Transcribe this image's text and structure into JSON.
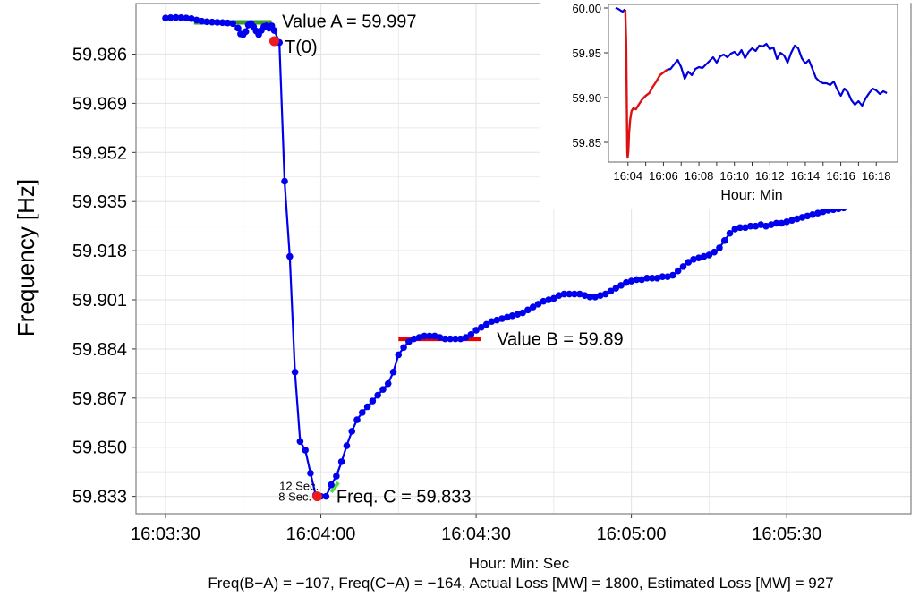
{
  "colors": {
    "series": "#0000ee",
    "value_b_line": "#ee0000",
    "value_a_line": "#3a9a2e",
    "marker": "#ee1c1c",
    "inset_series": "#0000dd",
    "inset_highlight": "#dd1111",
    "grid": "#e6e6e6",
    "panel_border": "#7f7f7f"
  },
  "chart_data": [
    {
      "id": "main",
      "type": "line",
      "ylabel": "Frequency [Hz]",
      "xlabel": "Hour: Min: Sec",
      "caption": "Freq(B−A) = −107, Freq(C−A) = −164, Actual Loss [MW] = 1800, Estimated Loss [MW] = 927",
      "x_unit": "seconds after 16:03:00",
      "xlim": [
        24.3,
        174
      ],
      "ylim": [
        59.827,
        60.0035
      ],
      "x_ticks": [
        30,
        60,
        90,
        120,
        150
      ],
      "x_tick_labels": [
        "16:03:30",
        "16:04:00",
        "16:04:30",
        "16:05:00",
        "16:05:30"
      ],
      "y_ticks": [
        59.833,
        59.85,
        59.867,
        59.884,
        59.901,
        59.918,
        59.935,
        59.952,
        59.969,
        59.986
      ],
      "y_tick_labels": [
        "59.833",
        "59.850",
        "59.867",
        "59.884",
        "59.901",
        "59.918",
        "59.935",
        "59.952",
        "59.969",
        "59.986"
      ],
      "grid": true,
      "series": [
        {
          "markers": true,
          "points": [
            [
              30,
              59.9985
            ],
            [
              31,
              59.9986
            ],
            [
              32,
              59.9987
            ],
            [
              33,
              59.9986
            ],
            [
              34,
              59.9985
            ],
            [
              35,
              59.9983
            ],
            [
              36,
              59.9978
            ],
            [
              37,
              59.9974
            ],
            [
              38,
              59.9972
            ],
            [
              39,
              59.9971
            ],
            [
              40,
              59.997
            ],
            [
              41,
              59.9969
            ],
            [
              42,
              59.9968
            ],
            [
              43,
              59.9966
            ],
            [
              44,
              59.995
            ],
            [
              44.5,
              59.993
            ],
            [
              45,
              59.9928
            ],
            [
              45.5,
              59.9938
            ],
            [
              46,
              59.9961
            ],
            [
              46.5,
              59.9966
            ],
            [
              47,
              59.9955
            ],
            [
              47.5,
              59.994
            ],
            [
              48,
              59.9928
            ],
            [
              48.5,
              59.9942
            ],
            [
              49,
              59.9955
            ],
            [
              49.5,
              59.9958
            ],
            [
              50,
              59.995
            ],
            [
              50.5,
              59.9958
            ],
            [
              51,
              59.9942
            ],
            [
              52,
              59.99
            ],
            [
              53,
              59.942
            ],
            [
              54,
              59.916
            ],
            [
              55,
              59.876
            ],
            [
              56,
              59.852
            ],
            [
              57,
              59.849
            ],
            [
              58,
              59.841
            ],
            [
              59,
              59.8335
            ],
            [
              60,
              59.833
            ],
            [
              61,
              59.833
            ],
            [
              62,
              59.837
            ],
            [
              63,
              59.84
            ],
            [
              64,
              59.845
            ],
            [
              65,
              59.8505
            ],
            [
              66,
              59.8555
            ],
            [
              67,
              59.8595
            ],
            [
              68,
              59.862
            ],
            [
              69,
              59.864
            ],
            [
              70,
              59.866
            ],
            [
              71,
              59.868
            ],
            [
              72,
              59.87
            ],
            [
              73,
              59.872
            ],
            [
              74,
              59.876
            ],
            [
              75,
              59.882
            ],
            [
              76,
              59.8845
            ],
            [
              77,
              59.8865
            ],
            [
              78,
              59.8875
            ],
            [
              79,
              59.888
            ],
            [
              80,
              59.8885
            ],
            [
              81,
              59.8885
            ],
            [
              82,
              59.8885
            ],
            [
              83,
              59.888
            ],
            [
              84,
              59.8875
            ],
            [
              85,
              59.8875
            ],
            [
              86,
              59.8875
            ],
            [
              87,
              59.8875
            ],
            [
              88,
              59.888
            ],
            [
              89,
              59.889
            ],
            [
              90,
              59.8905
            ],
            [
              91,
              59.8915
            ],
            [
              92,
              59.8925
            ],
            [
              93,
              59.8935
            ],
            [
              94,
              59.894
            ],
            [
              95,
              59.8945
            ],
            [
              96,
              59.895
            ],
            [
              97,
              59.8955
            ],
            [
              98,
              59.896
            ],
            [
              99,
              59.8965
            ],
            [
              100,
              59.8975
            ],
            [
              101,
              59.8985
            ],
            [
              102,
              59.8995
            ],
            [
              103,
              59.9005
            ],
            [
              104,
              59.901
            ],
            [
              105,
              59.9015
            ],
            [
              106,
              59.9025
            ],
            [
              107,
              59.903
            ],
            [
              108,
              59.903
            ],
            [
              109,
              59.903
            ],
            [
              110,
              59.903
            ],
            [
              111,
              59.9025
            ],
            [
              112,
              59.902
            ],
            [
              113,
              59.902
            ],
            [
              114,
              59.9025
            ],
            [
              115,
              59.903
            ],
            [
              116,
              59.904
            ],
            [
              117,
              59.905
            ],
            [
              118,
              59.906
            ],
            [
              119,
              59.907
            ],
            [
              120,
              59.9075
            ],
            [
              121,
              59.908
            ],
            [
              122,
              59.908
            ],
            [
              123,
              59.9085
            ],
            [
              124,
              59.9085
            ],
            [
              125,
              59.9085
            ],
            [
              126,
              59.909
            ],
            [
              127,
              59.909
            ],
            [
              128,
              59.9095
            ],
            [
              129,
              59.911
            ],
            [
              130,
              59.9125
            ],
            [
              131,
              59.914
            ],
            [
              132,
              59.915
            ],
            [
              133,
              59.9155
            ],
            [
              134,
              59.916
            ],
            [
              135,
              59.9165
            ],
            [
              136,
              59.9175
            ],
            [
              137,
              59.919
            ],
            [
              138,
              59.9215
            ],
            [
              139,
              59.924
            ],
            [
              140,
              59.9255
            ],
            [
              141,
              59.926
            ],
            [
              142,
              59.926
            ],
            [
              143,
              59.9265
            ],
            [
              144,
              59.9265
            ],
            [
              145,
              59.927
            ],
            [
              146,
              59.9265
            ],
            [
              147,
              59.927
            ],
            [
              148,
              59.9275
            ],
            [
              149,
              59.9275
            ],
            [
              150,
              59.928
            ],
            [
              151,
              59.9285
            ],
            [
              152,
              59.929
            ],
            [
              153,
              59.9295
            ],
            [
              154,
              59.93
            ],
            [
              155,
              59.9305
            ],
            [
              156,
              59.931
            ],
            [
              157,
              59.9315
            ],
            [
              158,
              59.932
            ],
            [
              159,
              59.9322
            ],
            [
              160,
              59.9325
            ],
            [
              161,
              59.9328
            ]
          ]
        }
      ],
      "annotations": {
        "value_a": {
          "label": "Value A = 59.997",
          "y": 59.997,
          "x_range": [
            35.5,
            50.5
          ],
          "text_x": 52.5,
          "text_y": 59.9975
        },
        "value_b": {
          "label": "Value B = 59.89",
          "y": 59.8875,
          "x_range": [
            75,
            91
          ],
          "text_x": 94,
          "text_y": 59.8875
        },
        "t0": {
          "label": "T(0)",
          "x": 51,
          "y": 59.9905,
          "text_x": 53,
          "text_y": 59.9887
        },
        "freq_c": {
          "label": "Freq. C = 59.833",
          "x": 59.3,
          "y": 59.833,
          "text_x": 63,
          "text_y": 59.833
        },
        "sec12": {
          "label": "12 Sec.",
          "text_x": 59.6,
          "text_y": 59.8365
        },
        "sec8": {
          "label": "8 Sec.",
          "text_x": 58.2,
          "text_y": 59.8327
        },
        "seconds_marker": {
          "x_range": [
            62,
            63.4
          ],
          "y_range": [
            59.8345,
            59.8378
          ]
        }
      }
    },
    {
      "id": "inset",
      "type": "line",
      "xlabel": "Hour: Min",
      "x_unit": "minutes after 16:00",
      "xlim": [
        2.9,
        19.2
      ],
      "ylim": [
        59.828,
        60.004
      ],
      "x_ticks": [
        4,
        5,
        6,
        7,
        8,
        9,
        10,
        11,
        12,
        13,
        14,
        15,
        16,
        17,
        18
      ],
      "x_tick_labels": [
        "16:04",
        "16:06",
        "16:08",
        "16:10",
        "16:12",
        "16:14",
        "16:16",
        "16:18"
      ],
      "x_labelled_ticks": [
        4,
        6,
        8,
        10,
        12,
        14,
        16,
        18
      ],
      "y_ticks": [
        59.85,
        59.9,
        59.95,
        60.0
      ],
      "y_tick_labels": [
        "59.85",
        "59.90",
        "59.95",
        "60.00"
      ],
      "highlight": {
        "points": [
          [
            3.85,
            59.998
          ],
          [
            3.9,
            59.96
          ],
          [
            3.93,
            59.9
          ],
          [
            3.96,
            59.84
          ],
          [
            3.98,
            59.833
          ],
          [
            4.02,
            59.84
          ],
          [
            4.06,
            59.86
          ],
          [
            4.12,
            59.875
          ],
          [
            4.2,
            59.885
          ],
          [
            4.3,
            59.888
          ],
          [
            4.45,
            59.887
          ],
          [
            4.6,
            59.892
          ],
          [
            4.8,
            59.898
          ],
          [
            5.0,
            59.902
          ],
          [
            5.2,
            59.905
          ],
          [
            5.4,
            59.912
          ],
          [
            5.6,
            59.918
          ],
          [
            5.8,
            59.925
          ],
          [
            6.0,
            59.928
          ],
          [
            6.2,
            59.931
          ]
        ]
      },
      "series": [
        {
          "points": [
            [
              3.3,
              60.0
            ],
            [
              3.45,
              59.999
            ],
            [
              3.6,
              59.997
            ],
            [
              3.7,
              59.996
            ],
            [
              3.8,
              59.998
            ],
            [
              3.85,
              59.998
            ],
            [
              6.2,
              59.931
            ],
            [
              6.4,
              59.932
            ],
            [
              6.6,
              59.937
            ],
            [
              6.8,
              59.942
            ],
            [
              7.0,
              59.934
            ],
            [
              7.2,
              59.921
            ],
            [
              7.4,
              59.929
            ],
            [
              7.6,
              59.925
            ],
            [
              7.8,
              59.932
            ],
            [
              8.0,
              59.934
            ],
            [
              8.2,
              59.933
            ],
            [
              8.4,
              59.937
            ],
            [
              8.6,
              59.941
            ],
            [
              8.8,
              59.945
            ],
            [
              9.0,
              59.939
            ],
            [
              9.2,
              59.946
            ],
            [
              9.4,
              59.948
            ],
            [
              9.6,
              59.945
            ],
            [
              9.8,
              59.949
            ],
            [
              10.0,
              59.951
            ],
            [
              10.2,
              59.947
            ],
            [
              10.4,
              59.953
            ],
            [
              10.6,
              59.944
            ],
            [
              10.8,
              59.951
            ],
            [
              11.0,
              59.955
            ],
            [
              11.2,
              59.952
            ],
            [
              11.4,
              59.958
            ],
            [
              11.6,
              59.957
            ],
            [
              11.8,
              59.96
            ],
            [
              12.0,
              59.954
            ],
            [
              12.2,
              59.956
            ],
            [
              12.4,
              59.943
            ],
            [
              12.6,
              59.95
            ],
            [
              12.8,
              59.947
            ],
            [
              13.0,
              59.939
            ],
            [
              13.2,
              59.95
            ],
            [
              13.4,
              59.958
            ],
            [
              13.6,
              59.955
            ],
            [
              13.8,
              59.944
            ],
            [
              14.0,
              59.938
            ],
            [
              14.2,
              59.942
            ],
            [
              14.4,
              59.932
            ],
            [
              14.6,
              59.922
            ],
            [
              14.8,
              59.918
            ],
            [
              15.0,
              59.916
            ],
            [
              15.2,
              59.916
            ],
            [
              15.4,
              59.914
            ],
            [
              15.6,
              59.918
            ],
            [
              15.8,
              59.909
            ],
            [
              16.0,
              59.902
            ],
            [
              16.2,
              59.91
            ],
            [
              16.4,
              59.906
            ],
            [
              16.6,
              59.897
            ],
            [
              16.8,
              59.892
            ],
            [
              17.0,
              59.896
            ],
            [
              17.2,
              59.891
            ],
            [
              17.4,
              59.899
            ],
            [
              17.6,
              59.905
            ],
            [
              17.8,
              59.91
            ],
            [
              18.0,
              59.908
            ],
            [
              18.2,
              59.904
            ],
            [
              18.4,
              59.907
            ],
            [
              18.6,
              59.905
            ]
          ]
        }
      ]
    }
  ]
}
